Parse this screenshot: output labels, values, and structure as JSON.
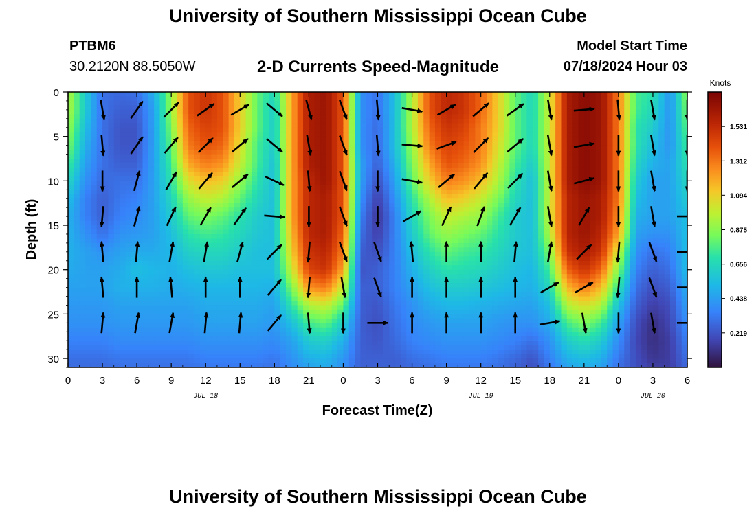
{
  "header": {
    "title": "University of Southern Mississippi Ocean Cube",
    "station": "PTBM6",
    "coords": "30.2120N  88.5050W",
    "subtitle": "2-D Currents Speed-Magnitude",
    "model_start_label": "Model Start Time",
    "model_start_value": "07/18/2024 Hour 03"
  },
  "footer": {
    "title": "University of Southern Mississippi Ocean Cube"
  },
  "chart_data": {
    "type": "heatmap",
    "title": "2-D Currents Speed-Magnitude",
    "xlabel": "Forecast Time(Z)",
    "ylabel": "Depth (ft)",
    "x_range_hours": [
      0,
      54
    ],
    "ylim": [
      0,
      31
    ],
    "x_tick_labels": [
      "0",
      "3",
      "6",
      "9",
      "12",
      "15",
      "18",
      "21",
      "0",
      "3",
      "6",
      "9",
      "12",
      "15",
      "18",
      "21",
      "0",
      "3",
      "6"
    ],
    "y_tick_labels": [
      "0",
      "5",
      "10",
      "15",
      "20",
      "25",
      "30"
    ],
    "date_labels": [
      {
        "text": "JUL 18",
        "hour": 12
      },
      {
        "text": "JUL 19",
        "hour": 36
      },
      {
        "text": "JUL 20",
        "hour": 51
      }
    ],
    "colorbar": {
      "unit": "Knots",
      "min": 0.0,
      "max": 1.75,
      "tick_values": [
        0.219,
        0.438,
        0.656,
        0.875,
        1.094,
        1.312,
        1.531
      ],
      "tick_labels": [
        "0.219",
        "0.438",
        "0.656",
        "0.875",
        "1.094",
        "1.312",
        "1.531"
      ]
    },
    "speed_field": {
      "time_hours": [
        0,
        1.5,
        3,
        4.5,
        6,
        7.5,
        9,
        10.5,
        12,
        13.5,
        15,
        16.5,
        18,
        19.5,
        21,
        22.5,
        24,
        25.5,
        27,
        28.5,
        30,
        31.5,
        33,
        34.5,
        36,
        37.5,
        39,
        40.5,
        42,
        43.5,
        45,
        46.5,
        48,
        49.5,
        51,
        52.5,
        54
      ],
      "depth_ft": [
        0,
        2,
        4,
        6,
        8,
        10,
        12,
        14,
        16,
        18,
        20,
        22,
        24,
        26,
        28,
        30,
        31
      ],
      "speed_knots": [
        [
          0.95,
          0.6,
          0.3,
          0.28,
          0.3,
          0.5,
          0.9,
          1.4,
          1.5,
          1.4,
          1.1,
          0.8,
          0.65,
          1.2,
          1.6,
          1.65,
          1.4,
          0.4,
          0.3,
          0.55,
          0.95,
          1.4,
          1.55,
          1.5,
          1.35,
          1.1,
          0.8,
          0.65,
          1.0,
          1.6,
          1.7,
          1.65,
          1.3,
          0.75,
          0.7,
          0.4,
          0.9
        ],
        [
          0.95,
          0.6,
          0.3,
          0.25,
          0.25,
          0.45,
          0.9,
          1.4,
          1.5,
          1.4,
          1.1,
          0.8,
          0.6,
          1.2,
          1.6,
          1.65,
          1.4,
          0.4,
          0.3,
          0.55,
          0.95,
          1.4,
          1.55,
          1.5,
          1.35,
          1.1,
          0.8,
          0.65,
          1.0,
          1.6,
          1.7,
          1.65,
          1.3,
          0.75,
          0.65,
          0.4,
          0.85
        ],
        [
          0.9,
          0.55,
          0.3,
          0.22,
          0.22,
          0.45,
          0.85,
          1.35,
          1.45,
          1.4,
          1.1,
          0.8,
          0.6,
          1.2,
          1.6,
          1.65,
          1.4,
          0.4,
          0.28,
          0.55,
          0.95,
          1.35,
          1.5,
          1.45,
          1.3,
          1.1,
          0.8,
          0.65,
          1.0,
          1.6,
          1.7,
          1.65,
          1.3,
          0.7,
          0.6,
          0.4,
          0.8
        ],
        [
          0.85,
          0.5,
          0.3,
          0.22,
          0.22,
          0.45,
          0.8,
          1.3,
          1.4,
          1.35,
          1.05,
          0.75,
          0.6,
          1.2,
          1.6,
          1.65,
          1.4,
          0.4,
          0.28,
          0.55,
          0.9,
          1.3,
          1.45,
          1.4,
          1.3,
          1.05,
          0.8,
          0.65,
          1.0,
          1.6,
          1.7,
          1.65,
          1.3,
          0.7,
          0.55,
          0.4,
          0.75
        ],
        [
          0.75,
          0.45,
          0.3,
          0.25,
          0.25,
          0.45,
          0.75,
          1.2,
          1.3,
          1.25,
          1.0,
          0.75,
          0.55,
          1.2,
          1.6,
          1.65,
          1.4,
          0.45,
          0.25,
          0.5,
          0.85,
          1.2,
          1.4,
          1.35,
          1.25,
          1.0,
          0.75,
          0.6,
          1.0,
          1.6,
          1.7,
          1.65,
          1.3,
          0.65,
          0.5,
          0.45,
          0.7
        ],
        [
          0.65,
          0.4,
          0.28,
          0.3,
          0.3,
          0.45,
          0.7,
          1.05,
          1.15,
          1.1,
          0.9,
          0.7,
          0.55,
          1.2,
          1.55,
          1.65,
          1.4,
          0.45,
          0.2,
          0.45,
          0.8,
          1.1,
          1.3,
          1.25,
          1.15,
          0.95,
          0.7,
          0.55,
          1.0,
          1.6,
          1.7,
          1.65,
          1.3,
          0.6,
          0.45,
          0.45,
          0.65
        ],
        [
          0.55,
          0.35,
          0.25,
          0.32,
          0.35,
          0.45,
          0.65,
          0.9,
          1.0,
          0.95,
          0.8,
          0.65,
          0.55,
          1.2,
          1.55,
          1.6,
          1.4,
          0.4,
          0.15,
          0.4,
          0.7,
          0.95,
          1.15,
          1.1,
          1.0,
          0.85,
          0.65,
          0.55,
          1.0,
          1.55,
          1.65,
          1.6,
          1.3,
          0.55,
          0.45,
          0.45,
          0.6
        ],
        [
          0.5,
          0.35,
          0.25,
          0.35,
          0.38,
          0.45,
          0.6,
          0.8,
          0.85,
          0.8,
          0.7,
          0.6,
          0.55,
          1.2,
          1.55,
          1.6,
          1.4,
          0.35,
          0.12,
          0.35,
          0.65,
          0.85,
          1.0,
          0.95,
          0.9,
          0.75,
          0.6,
          0.55,
          1.0,
          1.55,
          1.65,
          1.6,
          1.25,
          0.5,
          0.45,
          0.45,
          0.55
        ],
        [
          0.5,
          0.4,
          0.3,
          0.4,
          0.42,
          0.45,
          0.55,
          0.7,
          0.75,
          0.72,
          0.65,
          0.58,
          0.55,
          1.15,
          1.55,
          1.6,
          1.35,
          0.3,
          0.15,
          0.35,
          0.6,
          0.8,
          0.9,
          0.85,
          0.8,
          0.7,
          0.6,
          0.55,
          0.95,
          1.55,
          1.65,
          1.55,
          1.2,
          0.45,
          0.4,
          0.4,
          0.55
        ],
        [
          0.5,
          0.45,
          0.4,
          0.45,
          0.48,
          0.48,
          0.52,
          0.62,
          0.65,
          0.65,
          0.6,
          0.55,
          0.55,
          1.1,
          1.5,
          1.55,
          1.3,
          0.25,
          0.2,
          0.35,
          0.55,
          0.7,
          0.8,
          0.75,
          0.72,
          0.65,
          0.58,
          0.55,
          0.85,
          1.5,
          1.6,
          1.5,
          1.0,
          0.4,
          0.3,
          0.35,
          0.55
        ],
        [
          0.48,
          0.45,
          0.45,
          0.48,
          0.55,
          0.52,
          0.5,
          0.55,
          0.58,
          0.58,
          0.55,
          0.55,
          0.55,
          1.0,
          1.45,
          1.5,
          1.2,
          0.22,
          0.25,
          0.35,
          0.5,
          0.62,
          0.7,
          0.68,
          0.65,
          0.6,
          0.55,
          0.52,
          0.75,
          1.35,
          1.5,
          1.35,
          0.85,
          0.35,
          0.25,
          0.3,
          0.55
        ],
        [
          0.45,
          0.45,
          0.45,
          0.5,
          0.5,
          0.5,
          0.48,
          0.5,
          0.52,
          0.52,
          0.52,
          0.52,
          0.5,
          0.85,
          1.25,
          1.3,
          1.0,
          0.25,
          0.25,
          0.35,
          0.45,
          0.55,
          0.6,
          0.6,
          0.58,
          0.55,
          0.52,
          0.5,
          0.65,
          1.15,
          1.3,
          1.15,
          0.7,
          0.3,
          0.2,
          0.25,
          0.5
        ],
        [
          0.42,
          0.42,
          0.42,
          0.45,
          0.45,
          0.45,
          0.45,
          0.45,
          0.48,
          0.48,
          0.48,
          0.48,
          0.45,
          0.7,
          0.95,
          1.0,
          0.8,
          0.25,
          0.22,
          0.32,
          0.4,
          0.48,
          0.52,
          0.52,
          0.5,
          0.48,
          0.46,
          0.45,
          0.55,
          0.95,
          1.05,
          0.95,
          0.55,
          0.25,
          0.15,
          0.2,
          0.45
        ],
        [
          0.4,
          0.4,
          0.4,
          0.42,
          0.42,
          0.42,
          0.42,
          0.42,
          0.45,
          0.45,
          0.45,
          0.45,
          0.42,
          0.55,
          0.75,
          0.8,
          0.62,
          0.25,
          0.2,
          0.3,
          0.38,
          0.42,
          0.45,
          0.45,
          0.45,
          0.42,
          0.4,
          0.4,
          0.48,
          0.75,
          0.85,
          0.75,
          0.45,
          0.2,
          0.1,
          0.18,
          0.4
        ],
        [
          0.35,
          0.35,
          0.35,
          0.38,
          0.38,
          0.38,
          0.38,
          0.38,
          0.4,
          0.4,
          0.4,
          0.4,
          0.38,
          0.45,
          0.6,
          0.62,
          0.5,
          0.25,
          0.22,
          0.28,
          0.35,
          0.38,
          0.4,
          0.4,
          0.4,
          0.38,
          0.35,
          0.3,
          0.4,
          0.6,
          0.68,
          0.6,
          0.38,
          0.18,
          0.1,
          0.15,
          0.35
        ],
        [
          0.3,
          0.3,
          0.3,
          0.32,
          0.32,
          0.32,
          0.32,
          0.32,
          0.35,
          0.35,
          0.35,
          0.35,
          0.32,
          0.4,
          0.5,
          0.52,
          0.42,
          0.25,
          0.25,
          0.25,
          0.3,
          0.32,
          0.35,
          0.35,
          0.35,
          0.32,
          0.28,
          0.22,
          0.35,
          0.5,
          0.55,
          0.5,
          0.32,
          0.2,
          0.12,
          0.15,
          0.3
        ],
        [
          0.28,
          0.28,
          0.28,
          0.3,
          0.3,
          0.3,
          0.3,
          0.3,
          0.32,
          0.32,
          0.32,
          0.32,
          0.3,
          0.38,
          0.45,
          0.48,
          0.4,
          0.25,
          0.25,
          0.25,
          0.28,
          0.3,
          0.32,
          0.32,
          0.32,
          0.3,
          0.26,
          0.2,
          0.32,
          0.45,
          0.5,
          0.45,
          0.3,
          0.2,
          0.15,
          0.15,
          0.28
        ]
      ]
    },
    "vectors": {
      "time_hours": [
        3,
        6,
        9,
        12,
        15,
        18,
        21,
        24,
        27,
        30,
        33,
        36,
        39,
        42,
        45,
        48,
        51,
        54
      ],
      "depth_ft": [
        2,
        6,
        10,
        14,
        18,
        22,
        26
      ],
      "note": "direction in degrees, math convention (0 = right, 90 = up)",
      "direction_deg": [
        [
          -80,
          55,
          45,
          35,
          30,
          -40,
          -75,
          -70,
          -85,
          -10,
          30,
          40,
          35,
          -80,
          5,
          -85,
          -80,
          -90
        ],
        [
          -85,
          55,
          50,
          45,
          40,
          -40,
          -80,
          -70,
          -85,
          -5,
          20,
          45,
          40,
          -80,
          10,
          -90,
          -80,
          -90
        ],
        [
          -90,
          75,
          60,
          50,
          40,
          -25,
          -85,
          -70,
          -90,
          -10,
          40,
          50,
          45,
          -80,
          15,
          -90,
          -80,
          -90
        ],
        [
          -95,
          75,
          65,
          60,
          55,
          -5,
          -90,
          -70,
          -90,
          30,
          65,
          70,
          60,
          -80,
          60,
          -90,
          -80,
          0
        ],
        [
          95,
          85,
          80,
          80,
          75,
          45,
          -95,
          -70,
          -70,
          95,
          90,
          90,
          85,
          80,
          45,
          -95,
          -70,
          0
        ],
        [
          95,
          90,
          95,
          90,
          90,
          50,
          -95,
          -80,
          -70,
          90,
          90,
          90,
          90,
          30,
          30,
          -95,
          -70,
          0
        ],
        [
          85,
          80,
          80,
          85,
          85,
          50,
          -85,
          -90,
          0,
          90,
          90,
          90,
          90,
          10,
          -80,
          -90,
          -80,
          0
        ]
      ]
    }
  }
}
